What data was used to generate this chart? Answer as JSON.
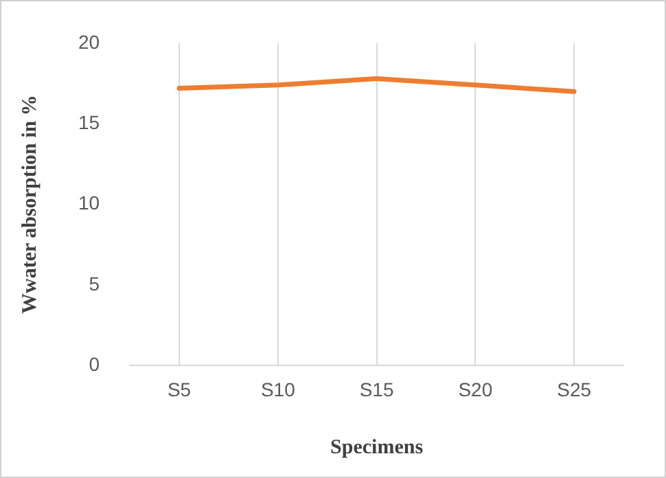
{
  "chart_data": {
    "type": "line",
    "xlabel": "Specimens",
    "ylabel": "Wwater absorption in %",
    "categories": [
      "S5",
      "S10",
      "S15",
      "S20",
      "S25"
    ],
    "series": [
      {
        "color": "#ed7d31",
        "values": [
          17.2,
          17.4,
          17.8,
          17.4,
          17.0
        ]
      }
    ],
    "ylim": [
      0,
      20
    ],
    "yticks": [
      0,
      5,
      10,
      15,
      20
    ],
    "grid": "x",
    "legend": false,
    "marker": "none"
  }
}
